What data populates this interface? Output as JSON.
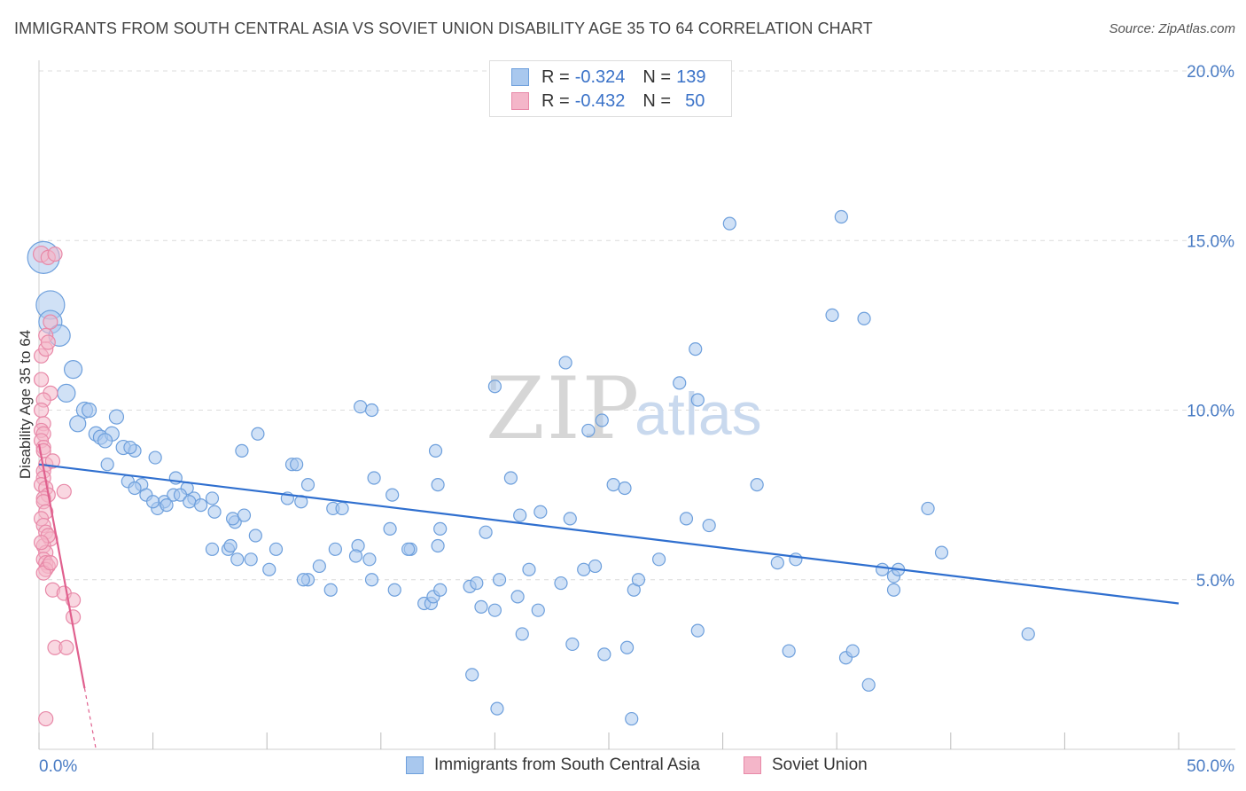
{
  "title": "IMMIGRANTS FROM SOUTH CENTRAL ASIA VS SOVIET UNION DISABILITY AGE 35 TO 64 CORRELATION CHART",
  "source": "Source: ZipAtlas.com",
  "watermark": {
    "zip": "ZIP",
    "atlas": "atlas"
  },
  "legend": {
    "r_label": "R =",
    "n_label": "N =",
    "rows": [
      {
        "r": "-0.324",
        "n": "139"
      },
      {
        "r": "-0.432",
        "n": "50"
      }
    ]
  },
  "colors": {
    "blue_fill": "#a9c8ee",
    "blue_stroke": "#6d9fdc",
    "blue_line": "#2f6fcf",
    "pink_fill": "#f4b6c9",
    "pink_stroke": "#e889a8",
    "pink_line": "#e0608e",
    "tick_text": "#4a7cc4",
    "grid": "#dcdcdc"
  },
  "chart_data": {
    "type": "scatter",
    "title": "IMMIGRANTS FROM SOUTH CENTRAL ASIA VS SOVIET UNION DISABILITY AGE 35 TO 64 CORRELATION CHART",
    "xlabel": "",
    "ylabel": "Disability Age 35 to 64",
    "xlim": [
      0,
      50
    ],
    "ylim": [
      0,
      20
    ],
    "x_tick_labels": [
      {
        "v": 0,
        "label": "0.0%"
      },
      {
        "v": 50,
        "label": "50.0%"
      }
    ],
    "y_tick_labels": [
      {
        "v": 5,
        "label": "5.0%"
      },
      {
        "v": 10,
        "label": "10.0%"
      },
      {
        "v": 15,
        "label": "15.0%"
      },
      {
        "v": 20,
        "label": "20.0%"
      }
    ],
    "series": [
      {
        "name": "Immigrants from South Central Asia",
        "color": "blue",
        "trend": {
          "x0": 0,
          "y0": 8.4,
          "x1": 50,
          "y1": 4.3
        },
        "points": [
          [
            0.2,
            14.5,
            1.8
          ],
          [
            0.5,
            13.1,
            1.6
          ],
          [
            0.5,
            12.6,
            1.3
          ],
          [
            0.9,
            12.2,
            1.2
          ],
          [
            1.5,
            11.2,
            1.0
          ],
          [
            1.2,
            10.5,
            1.0
          ],
          [
            2.0,
            10.0,
            0.9
          ],
          [
            2.2,
            10.0,
            0.8
          ],
          [
            1.7,
            9.6,
            0.9
          ],
          [
            3.4,
            9.8,
            0.8
          ],
          [
            2.5,
            9.3,
            0.8
          ],
          [
            2.7,
            9.2,
            0.8
          ],
          [
            3.2,
            9.3,
            0.8
          ],
          [
            2.9,
            9.1,
            0.8
          ],
          [
            3.7,
            8.9,
            0.8
          ],
          [
            4.2,
            8.8,
            0.7
          ],
          [
            4.0,
            8.9,
            0.7
          ],
          [
            5.1,
            8.6,
            0.7
          ],
          [
            3.0,
            8.4,
            0.7
          ],
          [
            6.0,
            8.0,
            0.7
          ],
          [
            3.9,
            7.9,
            0.7
          ],
          [
            4.5,
            7.8,
            0.7
          ],
          [
            4.2,
            7.7,
            0.7
          ],
          [
            6.5,
            7.7,
            0.7
          ],
          [
            4.7,
            7.5,
            0.7
          ],
          [
            5.5,
            7.3,
            0.7
          ],
          [
            5.9,
            7.5,
            0.7
          ],
          [
            6.2,
            7.5,
            0.7
          ],
          [
            5.2,
            7.1,
            0.7
          ],
          [
            6.8,
            7.4,
            0.7
          ],
          [
            5.0,
            7.3,
            0.7
          ],
          [
            6.6,
            7.3,
            0.7
          ],
          [
            5.6,
            7.2,
            0.7
          ],
          [
            7.1,
            7.2,
            0.7
          ],
          [
            7.6,
            7.4,
            0.7
          ],
          [
            7.7,
            7.0,
            0.7
          ],
          [
            8.6,
            6.7,
            0.7
          ],
          [
            8.5,
            6.8,
            0.7
          ],
          [
            9.5,
            6.3,
            0.7
          ],
          [
            9.0,
            6.9,
            0.7
          ],
          [
            9.6,
            9.3,
            0.7
          ],
          [
            8.9,
            8.8,
            0.7
          ],
          [
            10.9,
            7.4,
            0.7
          ],
          [
            11.1,
            8.4,
            0.7
          ],
          [
            11.3,
            8.4,
            0.7
          ],
          [
            11.8,
            7.8,
            0.7
          ],
          [
            11.5,
            7.3,
            0.7
          ],
          [
            12.9,
            7.1,
            0.7
          ],
          [
            13.3,
            7.1,
            0.7
          ],
          [
            14.1,
            10.1,
            0.7
          ],
          [
            14.6,
            10.0,
            0.7
          ],
          [
            14.7,
            8.0,
            0.7
          ],
          [
            15.5,
            7.5,
            0.7
          ],
          [
            15.4,
            6.5,
            0.7
          ],
          [
            17.4,
            8.8,
            0.7
          ],
          [
            17.5,
            7.8,
            0.7
          ],
          [
            17.6,
            6.5,
            0.7
          ],
          [
            16.3,
            5.9,
            0.7
          ],
          [
            16.2,
            5.9,
            0.7
          ],
          [
            14.0,
            6.0,
            0.7
          ],
          [
            13.9,
            5.7,
            0.7
          ],
          [
            14.5,
            5.6,
            0.7
          ],
          [
            13.0,
            5.9,
            0.7
          ],
          [
            12.3,
            5.4,
            0.7
          ],
          [
            11.8,
            5.0,
            0.7
          ],
          [
            11.6,
            5.0,
            0.7
          ],
          [
            10.4,
            5.9,
            0.7
          ],
          [
            10.1,
            5.3,
            0.7
          ],
          [
            8.3,
            5.9,
            0.7
          ],
          [
            9.3,
            5.6,
            0.7
          ],
          [
            12.8,
            4.7,
            0.7
          ],
          [
            14.6,
            5.0,
            0.7
          ],
          [
            15.6,
            4.7,
            0.7
          ],
          [
            16.9,
            4.3,
            0.7
          ],
          [
            17.2,
            4.3,
            0.7
          ],
          [
            17.3,
            4.5,
            0.7
          ],
          [
            17.6,
            4.7,
            0.7
          ],
          [
            18.9,
            4.8,
            0.7
          ],
          [
            19.2,
            4.9,
            0.7
          ],
          [
            19.4,
            4.2,
            0.7
          ],
          [
            19.6,
            6.4,
            0.7
          ],
          [
            20.0,
            10.7,
            0.7
          ],
          [
            20.2,
            5.0,
            0.7
          ],
          [
            20.0,
            4.1,
            0.7
          ],
          [
            21.0,
            4.5,
            0.7
          ],
          [
            21.1,
            6.9,
            0.7
          ],
          [
            21.5,
            5.3,
            0.7
          ],
          [
            21.2,
            3.4,
            0.7
          ],
          [
            20.7,
            8.0,
            0.7
          ],
          [
            21.9,
            4.1,
            0.7
          ],
          [
            22.0,
            7.0,
            0.7
          ],
          [
            22.9,
            4.9,
            0.7
          ],
          [
            23.1,
            11.4,
            0.7
          ],
          [
            23.3,
            6.8,
            0.7
          ],
          [
            23.9,
            5.3,
            0.7
          ],
          [
            24.4,
            5.4,
            0.7
          ],
          [
            24.1,
            9.4,
            0.7
          ],
          [
            24.7,
            9.7,
            0.7
          ],
          [
            25.2,
            7.8,
            0.7
          ],
          [
            24.8,
            2.8,
            0.7
          ],
          [
            25.8,
            3.0,
            0.7
          ],
          [
            26.1,
            4.7,
            0.7
          ],
          [
            26.3,
            5.0,
            0.7
          ],
          [
            26.0,
            0.9,
            0.7
          ],
          [
            27.2,
            5.6,
            0.7
          ],
          [
            28.1,
            10.8,
            0.7
          ],
          [
            28.9,
            10.3,
            0.7
          ],
          [
            28.8,
            11.8,
            0.7
          ],
          [
            28.4,
            6.8,
            0.7
          ],
          [
            29.4,
            6.6,
            0.7
          ],
          [
            28.9,
            3.5,
            0.7
          ],
          [
            30.3,
            15.5,
            0.7
          ],
          [
            31.5,
            7.8,
            0.7
          ],
          [
            32.4,
            5.5,
            0.7
          ],
          [
            33.2,
            5.6,
            0.7
          ],
          [
            32.9,
            2.9,
            0.7
          ],
          [
            34.8,
            12.8,
            0.7
          ],
          [
            35.2,
            15.7,
            0.7
          ],
          [
            36.2,
            12.7,
            0.7
          ],
          [
            35.4,
            2.7,
            0.7
          ],
          [
            35.7,
            2.9,
            0.7
          ],
          [
            36.4,
            1.9,
            0.7
          ],
          [
            37.0,
            5.3,
            0.7
          ],
          [
            37.5,
            5.1,
            0.7
          ],
          [
            37.7,
            5.3,
            0.7
          ],
          [
            37.5,
            4.7,
            0.7
          ],
          [
            39.0,
            7.1,
            0.7
          ],
          [
            39.6,
            5.8,
            0.7
          ],
          [
            43.4,
            3.4,
            0.7
          ],
          [
            7.6,
            5.9,
            0.7
          ],
          [
            8.4,
            6.0,
            0.7
          ],
          [
            8.7,
            5.6,
            0.7
          ],
          [
            19.0,
            2.2,
            0.7
          ],
          [
            20.1,
            1.2,
            0.7
          ],
          [
            17.5,
            6.0,
            0.7
          ],
          [
            23.4,
            3.1,
            0.7
          ],
          [
            25.7,
            7.7,
            0.7
          ]
        ]
      },
      {
        "name": "Soviet Union",
        "color": "pink",
        "trend": {
          "x0": 0,
          "y0": 9.0,
          "x1": 2.0,
          "y1": 1.8,
          "dash_x1": 2.5,
          "dash_y1": 0
        },
        "points": [
          [
            0.1,
            14.6,
            0.9
          ],
          [
            0.4,
            14.5,
            0.8
          ],
          [
            0.7,
            14.6,
            0.8
          ],
          [
            0.3,
            12.2,
            0.8
          ],
          [
            0.1,
            11.6,
            0.8
          ],
          [
            0.3,
            11.8,
            0.8
          ],
          [
            0.1,
            10.9,
            0.8
          ],
          [
            0.5,
            10.5,
            0.8
          ],
          [
            0.2,
            10.3,
            0.8
          ],
          [
            0.1,
            10.0,
            0.8
          ],
          [
            0.2,
            9.6,
            0.8
          ],
          [
            0.1,
            9.4,
            0.8
          ],
          [
            0.2,
            9.3,
            0.8
          ],
          [
            0.1,
            9.1,
            0.8
          ],
          [
            0.2,
            8.9,
            0.8
          ],
          [
            0.2,
            8.8,
            0.8
          ],
          [
            0.3,
            8.4,
            0.8
          ],
          [
            0.6,
            8.5,
            0.8
          ],
          [
            0.2,
            8.2,
            0.8
          ],
          [
            0.2,
            8.0,
            0.8
          ],
          [
            0.1,
            7.8,
            0.8
          ],
          [
            0.3,
            7.7,
            0.8
          ],
          [
            0.4,
            7.5,
            0.8
          ],
          [
            1.1,
            7.6,
            0.8
          ],
          [
            0.2,
            7.4,
            0.8
          ],
          [
            0.2,
            7.3,
            0.8
          ],
          [
            0.3,
            7.0,
            0.8
          ],
          [
            0.1,
            6.8,
            0.8
          ],
          [
            0.2,
            6.6,
            0.8
          ],
          [
            0.3,
            6.4,
            0.8
          ],
          [
            0.5,
            6.2,
            0.8
          ],
          [
            0.2,
            6.0,
            0.8
          ],
          [
            0.3,
            5.8,
            0.8
          ],
          [
            0.2,
            5.6,
            0.8
          ],
          [
            0.3,
            5.5,
            0.8
          ],
          [
            0.4,
            5.4,
            0.8
          ],
          [
            0.3,
            5.3,
            0.8
          ],
          [
            0.6,
            4.7,
            0.8
          ],
          [
            1.1,
            4.6,
            0.8
          ],
          [
            1.5,
            4.4,
            0.8
          ],
          [
            1.5,
            3.9,
            0.8
          ],
          [
            0.7,
            3.0,
            0.8
          ],
          [
            1.2,
            3.0,
            0.8
          ],
          [
            0.3,
            0.9,
            0.8
          ],
          [
            0.5,
            12.6,
            0.8
          ],
          [
            0.4,
            12.0,
            0.8
          ],
          [
            0.4,
            6.3,
            0.8
          ],
          [
            0.1,
            6.1,
            0.8
          ],
          [
            0.2,
            5.2,
            0.8
          ],
          [
            0.5,
            5.5,
            0.8
          ]
        ]
      }
    ],
    "bottom_legend": [
      "Immigrants from South Central Asia",
      "Soviet Union"
    ]
  }
}
